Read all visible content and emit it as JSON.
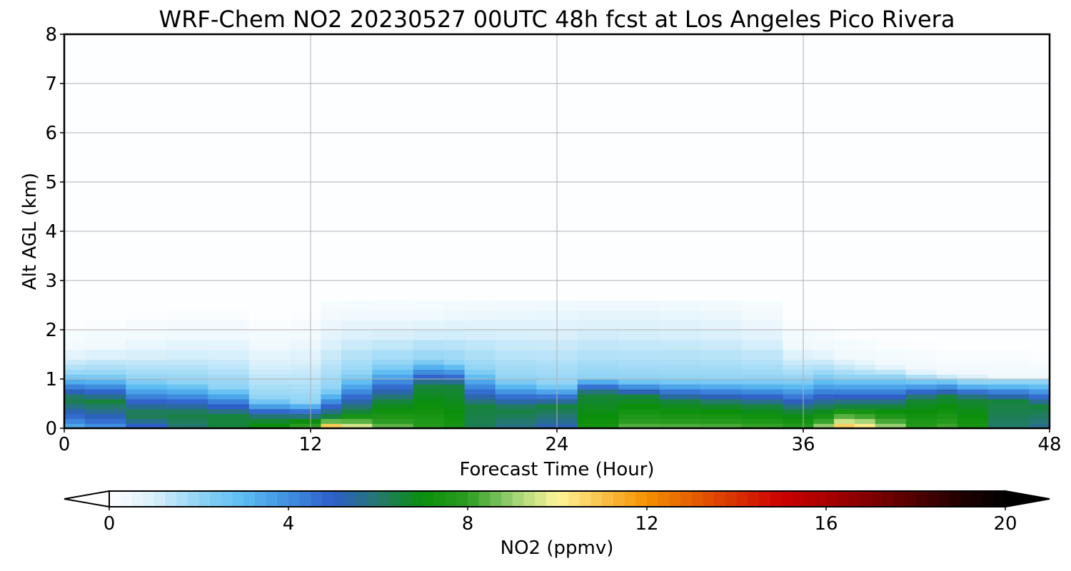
{
  "chart_data": {
    "type": "heatmap",
    "title": "WRF-Chem NO2  20230527 00UTC 48h fcst at Los Angeles Pico Rivera",
    "xlabel": "Forecast Time (Hour)",
    "ylabel": "Alt AGL (km)",
    "xlim": [
      0,
      48
    ],
    "ylim": [
      0,
      8
    ],
    "xticks": [
      "0",
      "12",
      "24",
      "36",
      "48"
    ],
    "yticks": [
      "0",
      "1",
      "2",
      "3",
      "4",
      "5",
      "6",
      "7",
      "8"
    ],
    "grid": true,
    "colorbar": {
      "label": "NO2  (ppmv)",
      "min": 0,
      "max": 20,
      "ticks": [
        "0",
        "4",
        "8",
        "12",
        "16",
        "20"
      ],
      "extend": "both",
      "colors": [
        {
          "value": 0,
          "color": "#ffffff"
        },
        {
          "value": 1,
          "color": "#d9f0fb"
        },
        {
          "value": 2,
          "color": "#8fd3f5"
        },
        {
          "value": 3,
          "color": "#5bbcf2"
        },
        {
          "value": 4,
          "color": "#3f8fe0"
        },
        {
          "value": 5,
          "color": "#2f5ec8"
        },
        {
          "value": 6,
          "color": "#24786f"
        },
        {
          "value": 7,
          "color": "#0a8f0a"
        },
        {
          "value": 8,
          "color": "#2c9c22"
        },
        {
          "value": 9,
          "color": "#9ad073"
        },
        {
          "value": 10,
          "color": "#fff59a"
        },
        {
          "value": 11,
          "color": "#f9c24a"
        },
        {
          "value": 12,
          "color": "#f59000"
        },
        {
          "value": 13,
          "color": "#e56000"
        },
        {
          "value": 14,
          "color": "#d83000"
        },
        {
          "value": 15,
          "color": "#cc0000"
        },
        {
          "value": 16,
          "color": "#aa0000"
        },
        {
          "value": 17,
          "color": "#800000"
        },
        {
          "value": 18,
          "color": "#500000"
        },
        {
          "value": 19,
          "color": "#200000"
        },
        {
          "value": 20,
          "color": "#000000"
        }
      ]
    },
    "field": {
      "x": [
        0,
        2,
        4,
        6,
        8,
        10,
        12,
        13,
        14,
        16,
        18,
        19,
        20,
        22,
        24,
        26,
        28,
        30,
        32,
        34,
        36,
        37,
        38,
        39,
        40,
        42,
        43,
        44,
        46,
        48
      ],
      "z": [
        0,
        0.1,
        0.2,
        0.3,
        0.4,
        0.5,
        0.6,
        0.7,
        0.8,
        0.9,
        1.0,
        1.1,
        1.2,
        1.3,
        1.4,
        1.6,
        1.8,
        2.0,
        2.2,
        2.4,
        2.6,
        8.0
      ],
      "surface_peak": [
        3.0,
        3.6,
        4.5,
        5.8,
        6.5,
        7.2,
        8.6,
        12.5,
        10.4,
        8.8,
        8.0,
        7.5,
        6.2,
        5.6,
        5.0,
        7.4,
        8.6,
        8.6,
        8.6,
        8.4,
        8.1,
        9.5,
        11.6,
        11.0,
        9.5,
        8.0,
        8.4,
        7.6,
        6.0,
        5.5
      ],
      "mix_height_km": [
        0.6,
        0.55,
        0.3,
        0.3,
        0.25,
        0.2,
        0.2,
        0.25,
        0.35,
        0.55,
        0.85,
        0.85,
        0.45,
        0.4,
        0.45,
        0.7,
        0.65,
        0.55,
        0.5,
        0.45,
        0.35,
        0.4,
        0.45,
        0.45,
        0.45,
        0.6,
        0.65,
        0.6,
        0.55,
        0.45
      ],
      "blue_cap_km": [
        1.1,
        1.1,
        1.0,
        0.95,
        0.85,
        0.6,
        0.55,
        0.8,
        1.1,
        1.3,
        1.4,
        1.35,
        1.2,
        1.0,
        0.9,
        1.05,
        1.0,
        1.0,
        1.0,
        1.0,
        1.0,
        1.1,
        1.05,
        1.05,
        1.05,
        1.0,
        1.0,
        0.95,
        0.95,
        0.95
      ],
      "haze_top_km": [
        1.6,
        1.7,
        1.8,
        1.9,
        1.9,
        1.7,
        1.8,
        2.2,
        2.3,
        2.25,
        2.3,
        2.35,
        2.4,
        2.45,
        2.5,
        2.55,
        2.55,
        2.5,
        2.4,
        2.2,
        1.7,
        1.6,
        1.5,
        1.4,
        1.3,
        1.2,
        1.1,
        1.1,
        1.05,
        1.0
      ]
    }
  }
}
